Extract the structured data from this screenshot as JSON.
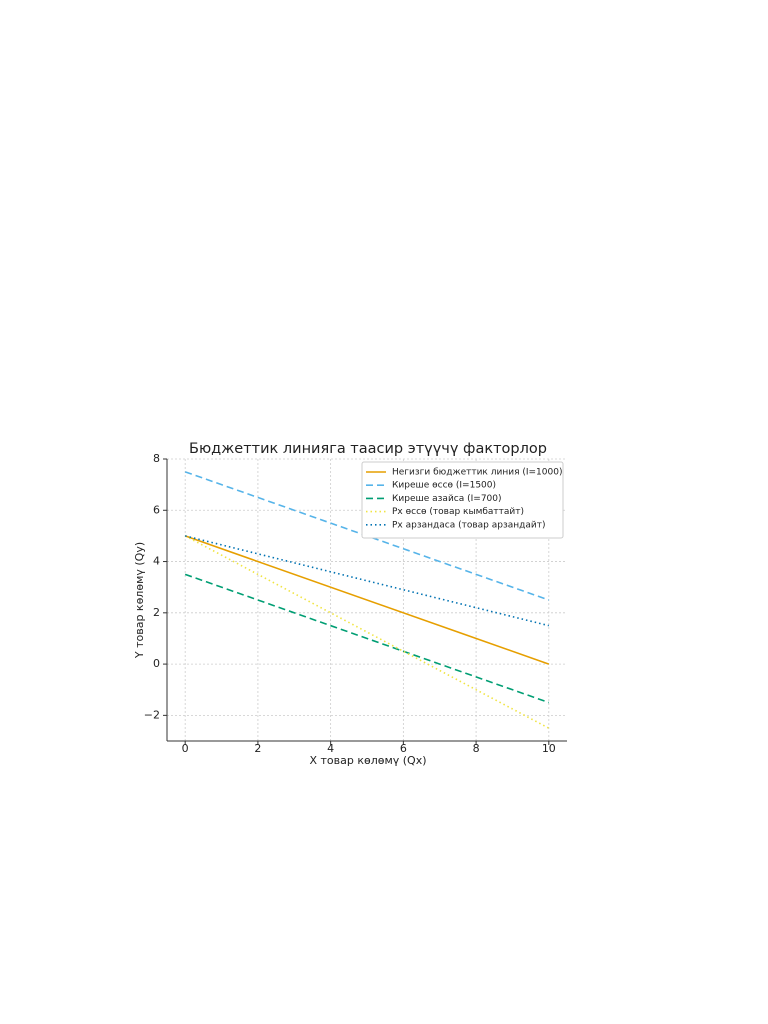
{
  "chart_data": {
    "type": "line",
    "title": "Бюджеттик линияга таасир этүүчү факторлор",
    "x_label": "X товар көлөмү (Qx)",
    "y_label": "Y товар көлөмү (Qy)",
    "x": [
      0,
      10
    ],
    "series": [
      {
        "name": "Негизги бюджеттик линия (I=1000)",
        "color": "#E69F00",
        "style": "solid",
        "values": [
          5,
          0
        ]
      },
      {
        "name": "Киреше өссө (I=1500)",
        "color": "#56B4E9",
        "style": "dashed",
        "values": [
          7.5,
          2.5
        ]
      },
      {
        "name": "Киреше азайса (I=700)",
        "color": "#009E73",
        "style": "dashed",
        "values": [
          3.5,
          -1.5
        ]
      },
      {
        "name": "Px өссө (товар кымбаттайт)",
        "color": "#F0E442",
        "style": "dotted",
        "values": [
          5,
          -2.5
        ]
      },
      {
        "name": "Px арзандаса (товар арзандайт)",
        "color": "#0072B2",
        "style": "dotted",
        "values": [
          5,
          1.5
        ]
      }
    ],
    "xlim": [
      -0.5,
      10.5
    ],
    "ylim": [
      -3,
      8
    ],
    "xticks": [
      0,
      2,
      4,
      6,
      8,
      10
    ],
    "yticks": [
      {
        "value": -2,
        "label": "−2"
      },
      0,
      2,
      4,
      6,
      8
    ],
    "grid": true,
    "legend": "upper-right"
  }
}
